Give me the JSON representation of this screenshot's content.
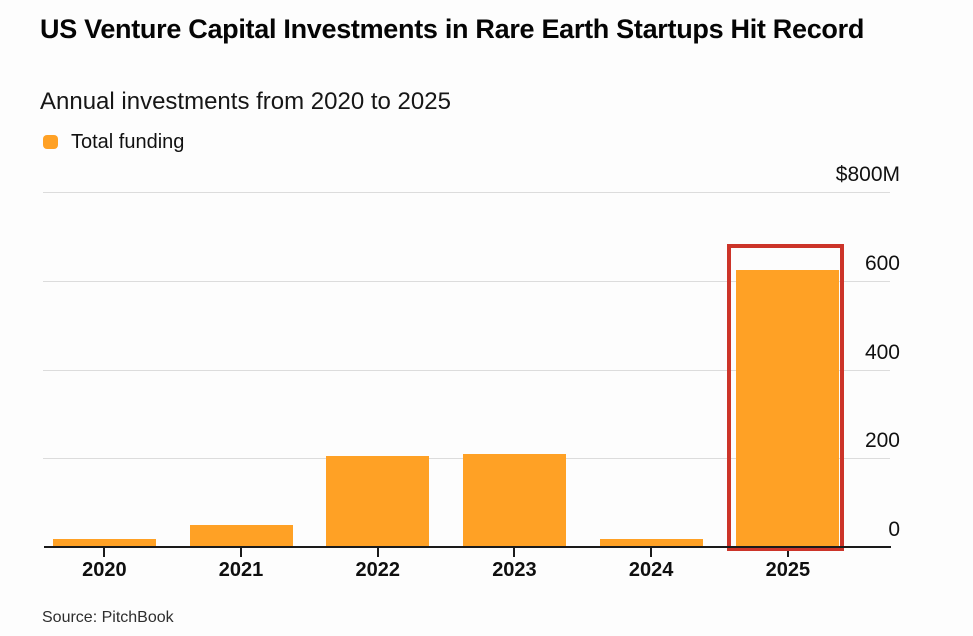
{
  "page": {
    "background_color": "#fdfdfd"
  },
  "header": {
    "title": "US Venture Capital Investments in Rare Earth Startups Hit Record",
    "subtitle": "Annual investments from 2020 to 2025"
  },
  "legend": {
    "label": "Total funding",
    "swatch_color": "#FFA125"
  },
  "chart_data": {
    "type": "bar",
    "title": "US Venture Capital Investments in Rare Earth Startups Hit Record",
    "subtitle": "Annual investments from 2020 to 2025",
    "categories": [
      "2020",
      "2021",
      "2022",
      "2023",
      "2024",
      "2025"
    ],
    "series": [
      {
        "name": "Total funding",
        "values": [
          18,
          50,
          205,
          210,
          18,
          625
        ]
      }
    ],
    "unit": "$M",
    "ylim": [
      0,
      800
    ],
    "yticks": [
      0,
      200,
      400,
      600,
      800
    ],
    "ytick_labels": [
      "0",
      "200",
      "400",
      "600",
      "$800M"
    ],
    "grid": true,
    "legend_position": "top-left",
    "bar_color": "#FFA125",
    "axis_color": "#1a1a1a",
    "gridline_color": "#dcdcdc",
    "highlight": {
      "category": "2025",
      "box_color": "#CC3429"
    },
    "source": "Source: PitchBook"
  }
}
